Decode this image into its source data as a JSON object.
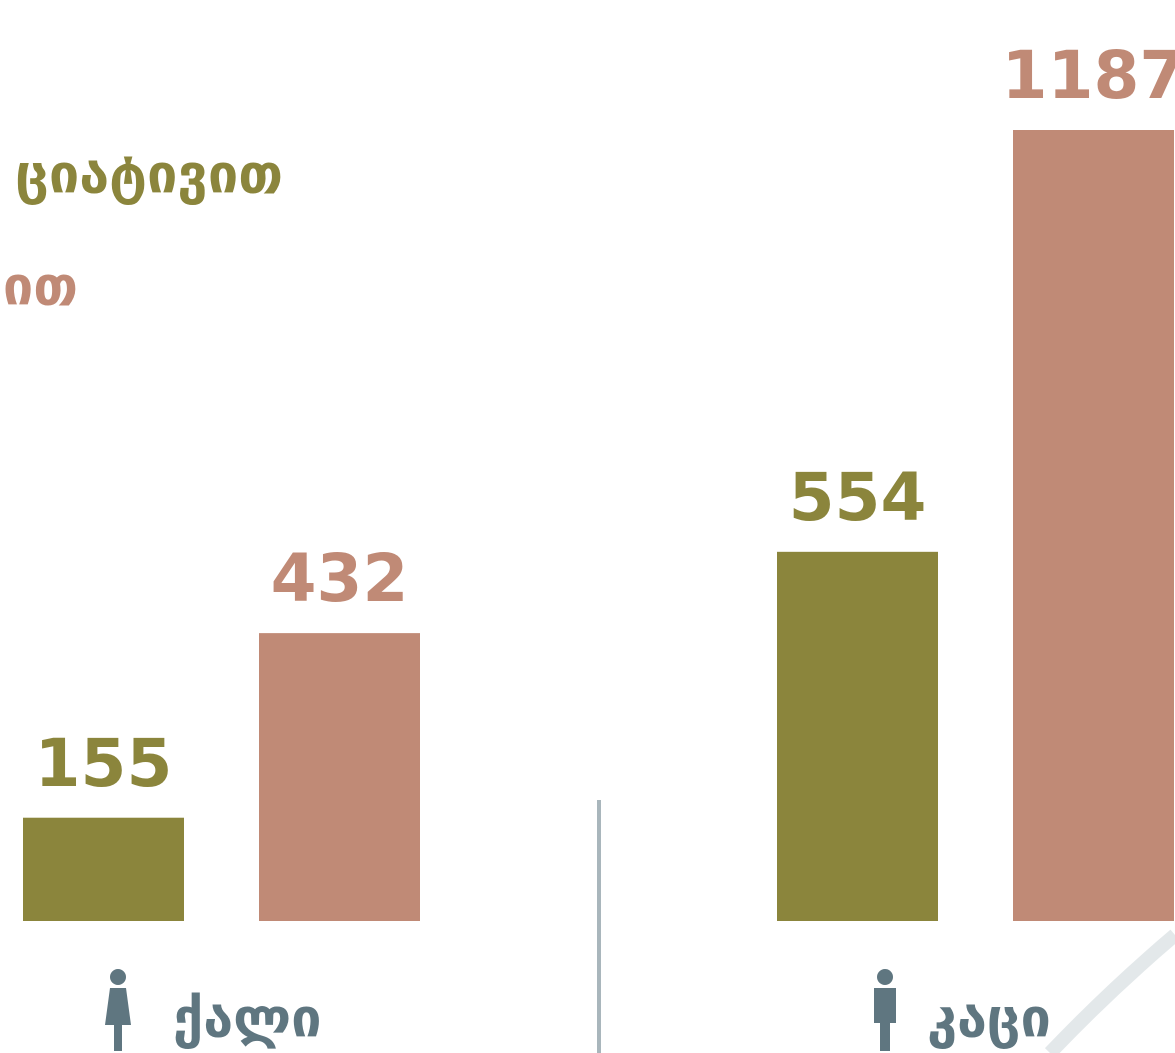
{
  "chart_data": {
    "type": "bar",
    "categories": [
      "ქალი",
      "კაცი"
    ],
    "series": [
      {
        "name": "ციატივით",
        "color": "#8b853c",
        "values": [
          155,
          554
        ]
      },
      {
        "name": "ით",
        "color": "#c08a76",
        "values": [
          432,
          1187
        ]
      }
    ]
  }
}
